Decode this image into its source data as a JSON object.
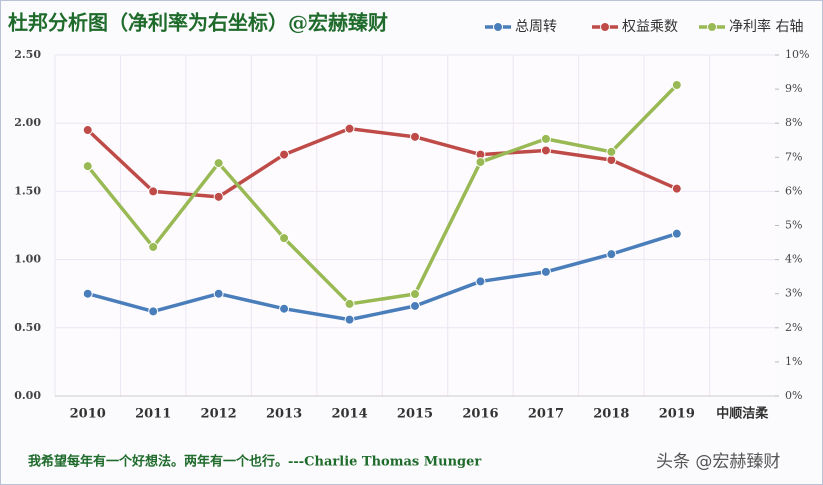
{
  "chart_data": {
    "type": "line",
    "title": "杜邦分析图（净利率为右坐标）@宏赫臻财",
    "footnote": "我希望每年有一个好想法。两年有一个也行。---Charlie Thomas  Munger",
    "watermark": "头条 @宏赫臻财",
    "categories": [
      "2010",
      "2011",
      "2012",
      "2013",
      "2014",
      "2015",
      "2016",
      "2017",
      "2018",
      "2019",
      "中顺洁柔"
    ],
    "series": [
      {
        "name": "总周转",
        "color": "#4a7ebb",
        "values": [
          0.75,
          0.62,
          0.75,
          0.64,
          0.56,
          0.66,
          0.84,
          0.91,
          1.04,
          1.19,
          null
        ]
      },
      {
        "name": "权益乘数",
        "color": "#be4b48",
        "values": [
          1.95,
          1.5,
          1.46,
          1.77,
          1.96,
          1.9,
          1.77,
          1.8,
          1.73,
          1.52,
          null
        ]
      },
      {
        "name": "净利率 右轴",
        "color": "#98b954",
        "axis": "y2",
        "values": [
          6.74,
          4.37,
          6.83,
          4.63,
          2.7,
          2.99,
          6.86,
          7.54,
          7.16,
          9.12,
          null
        ]
      }
    ],
    "ylim": [
      0,
      2.5
    ],
    "yticks": [
      {
        "value": 0,
        "label": "0.00"
      },
      {
        "value": 0.5,
        "label": "0.50"
      },
      {
        "value": 1,
        "label": "1.00"
      },
      {
        "value": 1.5,
        "label": "1.50"
      },
      {
        "value": 2,
        "label": "2.00"
      },
      {
        "value": 2.5,
        "label": "2.50"
      }
    ],
    "y2lim": [
      0,
      10
    ],
    "y2ticks": [
      {
        "value": 0,
        "label": "0%"
      },
      {
        "value": 1,
        "label": "1%"
      },
      {
        "value": 2,
        "label": "2%"
      },
      {
        "value": 3,
        "label": "3%"
      },
      {
        "value": 4,
        "label": "4%"
      },
      {
        "value": 5,
        "label": "5%"
      },
      {
        "value": 6,
        "label": "6%"
      },
      {
        "value": 7,
        "label": "7%"
      },
      {
        "value": 8,
        "label": "8%"
      },
      {
        "value": 9,
        "label": "9%"
      },
      {
        "value": 10,
        "label": "10%"
      }
    ],
    "grid": true
  }
}
